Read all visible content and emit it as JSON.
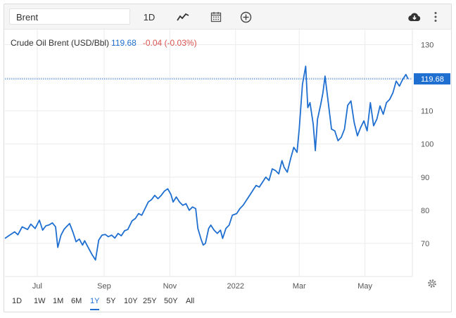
{
  "toolbar": {
    "search_value": "Brent",
    "interval_label": "1D"
  },
  "legend": {
    "name": "Crude Oil Brent (USD/Bbl)",
    "price": "119.68",
    "change": "-0.04 (-0.03%)"
  },
  "chart_data": {
    "type": "line",
    "title": "",
    "xlabel": "",
    "ylabel": "",
    "last_value_label": "119.68",
    "grid": true,
    "ylim": [
      60,
      135
    ],
    "yticks": [
      70,
      80,
      90,
      100,
      110,
      120,
      130
    ],
    "ytick_labels": [
      "70",
      "80",
      "90",
      "100",
      "110",
      "",
      "130"
    ],
    "xtick_labels": [
      "Jul",
      "Sep",
      "Nov",
      "2022",
      "Mar",
      "May"
    ],
    "xtick_dates": [
      "2021-07-01",
      "2021-09-01",
      "2021-11-01",
      "2022-01-01",
      "2022-03-01",
      "2022-05-01"
    ],
    "xlim": [
      "2021-06-01",
      "2022-06-14"
    ],
    "series": [
      {
        "color": "#1f6fd1",
        "points": [
          [
            "2021-06-01",
            71.5
          ],
          [
            "2021-06-05",
            72.4
          ],
          [
            "2021-06-10",
            73.5
          ],
          [
            "2021-06-13",
            72.6
          ],
          [
            "2021-06-17",
            75.0
          ],
          [
            "2021-06-22",
            74.2
          ],
          [
            "2021-06-25",
            75.8
          ],
          [
            "2021-06-29",
            74.5
          ],
          [
            "2021-07-03",
            77.0
          ],
          [
            "2021-07-06",
            74.0
          ],
          [
            "2021-07-09",
            75.3
          ],
          [
            "2021-07-12",
            75.6
          ],
          [
            "2021-07-15",
            76.2
          ],
          [
            "2021-07-18",
            75.0
          ],
          [
            "2021-07-20",
            68.8
          ],
          [
            "2021-07-23",
            72.5
          ],
          [
            "2021-07-26",
            74.3
          ],
          [
            "2021-07-28",
            75.0
          ],
          [
            "2021-07-31",
            76.0
          ],
          [
            "2021-08-03",
            73.5
          ],
          [
            "2021-08-06",
            70.5
          ],
          [
            "2021-08-09",
            71.3
          ],
          [
            "2021-08-12",
            69.5
          ],
          [
            "2021-08-14",
            70.8
          ],
          [
            "2021-08-18",
            68.3
          ],
          [
            "2021-08-21",
            66.5
          ],
          [
            "2021-08-24",
            65.0
          ],
          [
            "2021-08-27",
            71.0
          ],
          [
            "2021-08-30",
            72.5
          ],
          [
            "2021-09-02",
            72.7
          ],
          [
            "2021-09-05",
            72.0
          ],
          [
            "2021-09-08",
            72.5
          ],
          [
            "2021-09-11",
            71.6
          ],
          [
            "2021-09-14",
            73.0
          ],
          [
            "2021-09-17",
            72.3
          ],
          [
            "2021-09-20",
            73.8
          ],
          [
            "2021-09-23",
            74.2
          ],
          [
            "2021-09-27",
            76.8
          ],
          [
            "2021-09-30",
            77.5
          ],
          [
            "2021-10-03",
            79.0
          ],
          [
            "2021-10-06",
            78.5
          ],
          [
            "2021-10-09",
            80.5
          ],
          [
            "2021-10-12",
            82.5
          ],
          [
            "2021-10-15",
            83.2
          ],
          [
            "2021-10-18",
            84.5
          ],
          [
            "2021-10-21",
            83.5
          ],
          [
            "2021-10-24",
            84.5
          ],
          [
            "2021-10-27",
            85.8
          ],
          [
            "2021-10-30",
            86.5
          ],
          [
            "2021-11-02",
            84.8
          ],
          [
            "2021-11-04",
            82.5
          ],
          [
            "2021-11-07",
            84.0
          ],
          [
            "2021-11-10",
            82.5
          ],
          [
            "2021-11-13",
            81.5
          ],
          [
            "2021-11-16",
            82.0
          ],
          [
            "2021-11-19",
            80.0
          ],
          [
            "2021-11-22",
            81.0
          ],
          [
            "2021-11-25",
            80.5
          ],
          [
            "2021-11-27",
            74.5
          ],
          [
            "2021-11-30",
            71.2
          ],
          [
            "2021-12-02",
            69.5
          ],
          [
            "2021-12-04",
            70.0
          ],
          [
            "2021-12-07",
            74.5
          ],
          [
            "2021-12-09",
            75.5
          ],
          [
            "2021-12-12",
            74.0
          ],
          [
            "2021-12-15",
            73.0
          ],
          [
            "2021-12-18",
            74.0
          ],
          [
            "2021-12-20",
            71.5
          ],
          [
            "2021-12-23",
            74.5
          ],
          [
            "2021-12-26",
            75.5
          ],
          [
            "2021-12-29",
            78.5
          ],
          [
            "2022-01-02",
            79.0
          ],
          [
            "2022-01-05",
            80.5
          ],
          [
            "2022-01-08",
            81.5
          ],
          [
            "2022-01-11",
            83.0
          ],
          [
            "2022-01-14",
            84.5
          ],
          [
            "2022-01-17",
            86.0
          ],
          [
            "2022-01-20",
            87.5
          ],
          [
            "2022-01-23",
            87.0
          ],
          [
            "2022-01-26",
            88.5
          ],
          [
            "2022-01-29",
            90.0
          ],
          [
            "2022-02-01",
            89.0
          ],
          [
            "2022-02-04",
            92.5
          ],
          [
            "2022-02-07",
            92.0
          ],
          [
            "2022-02-10",
            91.0
          ],
          [
            "2022-02-13",
            95.0
          ],
          [
            "2022-02-15",
            93.0
          ],
          [
            "2022-02-18",
            91.5
          ],
          [
            "2022-02-21",
            95.5
          ],
          [
            "2022-02-24",
            99.0
          ],
          [
            "2022-02-27",
            97.5
          ],
          [
            "2022-03-01",
            104.5
          ],
          [
            "2022-03-04",
            118.0
          ],
          [
            "2022-03-07",
            123.5
          ],
          [
            "2022-03-09",
            111.0
          ],
          [
            "2022-03-11",
            112.5
          ],
          [
            "2022-03-14",
            106.0
          ],
          [
            "2022-03-16",
            98.0
          ],
          [
            "2022-03-18",
            107.5
          ],
          [
            "2022-03-21",
            112.0
          ],
          [
            "2022-03-23",
            115.5
          ],
          [
            "2022-03-25",
            120.5
          ],
          [
            "2022-03-28",
            112.5
          ],
          [
            "2022-03-31",
            104.5
          ],
          [
            "2022-04-03",
            104.0
          ],
          [
            "2022-04-06",
            101.0
          ],
          [
            "2022-04-09",
            102.0
          ],
          [
            "2022-04-12",
            104.5
          ],
          [
            "2022-04-15",
            111.7
          ],
          [
            "2022-04-18",
            113.0
          ],
          [
            "2022-04-21",
            106.5
          ],
          [
            "2022-04-24",
            102.5
          ],
          [
            "2022-04-27",
            105.0
          ],
          [
            "2022-04-30",
            107.0
          ],
          [
            "2022-05-03",
            104.0
          ],
          [
            "2022-05-06",
            112.5
          ],
          [
            "2022-05-09",
            105.5
          ],
          [
            "2022-05-12",
            107.5
          ],
          [
            "2022-05-15",
            111.5
          ],
          [
            "2022-05-18",
            109.0
          ],
          [
            "2022-05-21",
            112.5
          ],
          [
            "2022-05-24",
            113.5
          ],
          [
            "2022-05-27",
            115.5
          ],
          [
            "2022-05-30",
            119.0
          ],
          [
            "2022-06-02",
            117.5
          ],
          [
            "2022-06-05",
            119.5
          ],
          [
            "2022-06-08",
            121.0
          ],
          [
            "2022-06-10",
            119.68
          ]
        ]
      }
    ]
  },
  "ranges": [
    "1D",
    "1W",
    "1M",
    "6M",
    "1Y",
    "5Y",
    "10Y",
    "25Y",
    "50Y",
    "All"
  ],
  "active_range": "1Y"
}
